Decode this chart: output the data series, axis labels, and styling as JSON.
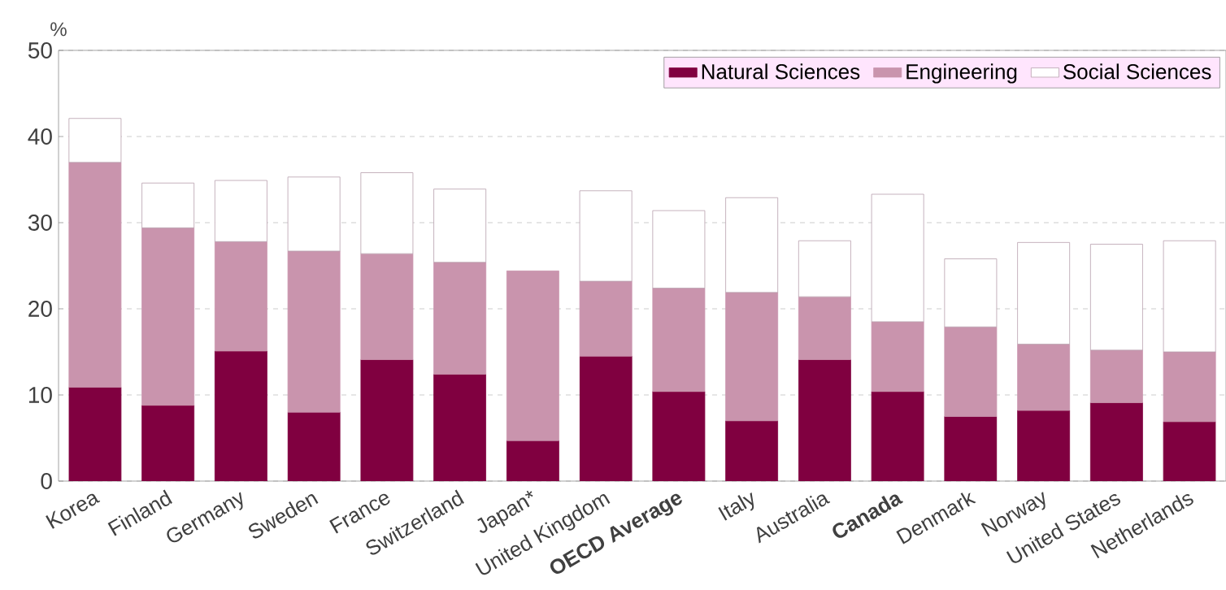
{
  "chart_data": {
    "type": "bar",
    "stacked": true,
    "ylabel": "%",
    "categories": [
      "Korea",
      "Finland",
      "Germany",
      "Sweden",
      "France",
      "Switzerland",
      "Japan*",
      "United Kingdom",
      "**OECD Average**",
      "Italy",
      "Australia",
      "**Canada**",
      "Denmark",
      "Norway",
      "United States",
      "Netherlands"
    ],
    "series": [
      {
        "name": "Natural Sciences",
        "color": "#800040",
        "values": [
          10.9,
          8.8,
          15.1,
          8.0,
          14.1,
          12.4,
          4.7,
          14.5,
          10.4,
          7.0,
          14.1,
          10.4,
          7.5,
          8.2,
          9.1,
          6.9
        ]
      },
      {
        "name": "Engineering",
        "color": "#c994ad",
        "values": [
          26.1,
          20.6,
          12.7,
          18.7,
          12.3,
          13.0,
          19.7,
          8.7,
          12.0,
          14.9,
          7.3,
          8.1,
          10.4,
          7.7,
          6.1,
          8.1
        ]
      },
      {
        "name": "Social Sciences",
        "color": "#ffffff",
        "values": [
          5.1,
          5.2,
          7.1,
          8.6,
          9.4,
          8.5,
          null,
          10.5,
          9.0,
          11.0,
          6.5,
          14.8,
          7.9,
          11.8,
          12.3,
          12.9
        ]
      }
    ],
    "ylim": [
      0,
      50
    ],
    "yticks": [
      0,
      10,
      20,
      30,
      40,
      50
    ],
    "grid": "y",
    "legend": "top right"
  }
}
